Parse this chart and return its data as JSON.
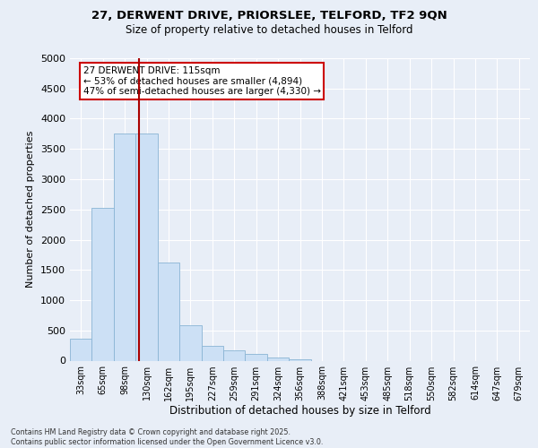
{
  "title_line1": "27, DERWENT DRIVE, PRIORSLEE, TELFORD, TF2 9QN",
  "title_line2": "Size of property relative to detached houses in Telford",
  "xlabel": "Distribution of detached houses by size in Telford",
  "ylabel": "Number of detached properties",
  "footer_line1": "Contains HM Land Registry data © Crown copyright and database right 2025.",
  "footer_line2": "Contains public sector information licensed under the Open Government Licence v3.0.",
  "categories": [
    "33sqm",
    "65sqm",
    "98sqm",
    "130sqm",
    "162sqm",
    "195sqm",
    "227sqm",
    "259sqm",
    "291sqm",
    "324sqm",
    "356sqm",
    "388sqm",
    "421sqm",
    "453sqm",
    "485sqm",
    "518sqm",
    "550sqm",
    "582sqm",
    "614sqm",
    "647sqm",
    "679sqm"
  ],
  "values": [
    370,
    2530,
    3750,
    3750,
    1620,
    590,
    250,
    175,
    105,
    50,
    20,
    0,
    0,
    0,
    0,
    0,
    0,
    0,
    0,
    0,
    0
  ],
  "bar_color": "#cce0f5",
  "bar_edge_color": "#8ab4d4",
  "vline_x": 2.65,
  "vline_color": "#aa0000",
  "annotation_text": "27 DERWENT DRIVE: 115sqm\n← 53% of detached houses are smaller (4,894)\n47% of semi-detached houses are larger (4,330) →",
  "annotation_box_color": "#ffffff",
  "annotation_box_edge": "#cc0000",
  "ylim": [
    0,
    5000
  ],
  "yticks": [
    0,
    500,
    1000,
    1500,
    2000,
    2500,
    3000,
    3500,
    4000,
    4500,
    5000
  ],
  "background_color": "#e8eef7",
  "grid_color": "#ffffff",
  "title1_fontsize": 9.5,
  "title2_fontsize": 8.5,
  "ylabel_fontsize": 8,
  "xlabel_fontsize": 8.5,
  "tick_fontsize": 7,
  "annot_fontsize": 7.5,
  "footer_fontsize": 5.8
}
